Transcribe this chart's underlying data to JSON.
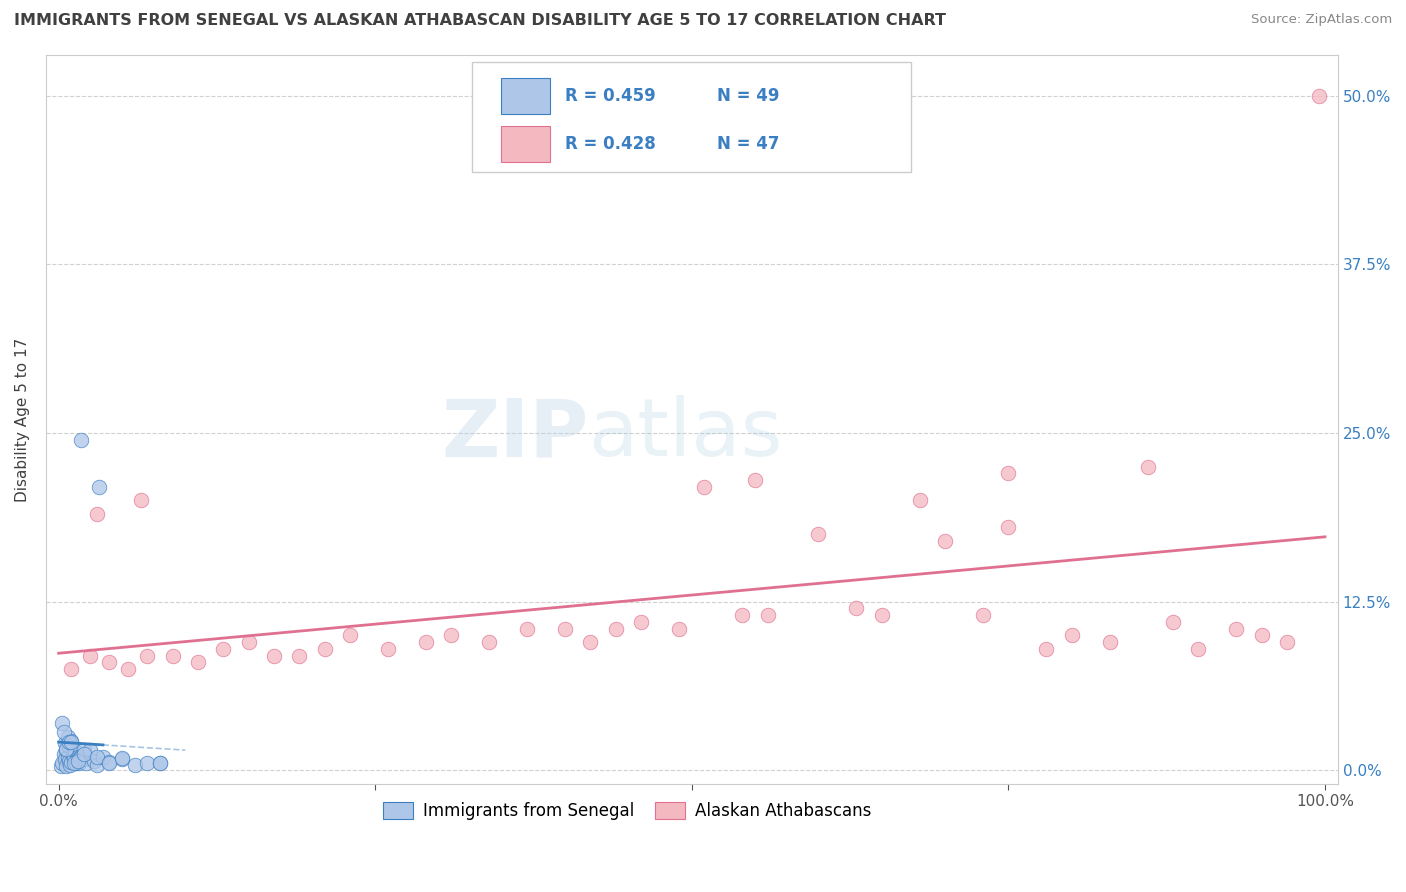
{
  "title": "IMMIGRANTS FROM SENEGAL VS ALASKAN ATHABASCAN DISABILITY AGE 5 TO 17 CORRELATION CHART",
  "source": "Source: ZipAtlas.com",
  "ylabel": "Disability Age 5 to 17",
  "xlabel_tick_vals": [
    0,
    25,
    50,
    75,
    100
  ],
  "ylabel_tick_vals": [
    0,
    12.5,
    25,
    37.5,
    50
  ],
  "xlim": [
    -1,
    101
  ],
  "ylim": [
    -1,
    53
  ],
  "legend_R_blue": "R = 0.459",
  "legend_N_blue": "N = 49",
  "legend_R_pink": "R = 0.428",
  "legend_N_pink": "N = 47",
  "watermark_zip": "ZIP",
  "watermark_atlas": "atlas",
  "blue_line_color": "#3a7fc1",
  "pink_line_color": "#e07090",
  "blue_scatter_color": "#aec6e8",
  "pink_scatter_color": "#f4b8c1",
  "background_color": "#ffffff",
  "grid_color": "#cccccc",
  "title_color": "#404040",
  "legend_text_color": "#3a7fc1",
  "bottom_legend_blue": "Immigrants from Senegal",
  "bottom_legend_pink": "Alaskan Athabascans",
  "blue_scatter_x": [
    0.2,
    0.3,
    0.4,
    0.5,
    0.5,
    0.6,
    0.7,
    0.8,
    0.9,
    1.0,
    1.0,
    1.1,
    1.2,
    1.3,
    1.4,
    1.5,
    1.5,
    1.6,
    1.7,
    1.8,
    2.0,
    2.0,
    2.2,
    2.5,
    2.5,
    2.8,
    3.0,
    3.5,
    4.0,
    5.0,
    6.0,
    7.0,
    8.0,
    0.3,
    0.4,
    0.5,
    0.6,
    0.7,
    0.8,
    1.0,
    1.2,
    1.5,
    2.0,
    3.0,
    4.0,
    5.0,
    8.0,
    3.5,
    2.0
  ],
  "blue_scatter_y": [
    0.3,
    0.5,
    1.2,
    2.0,
    0.8,
    1.5,
    0.3,
    2.5,
    1.0,
    0.7,
    1.8,
    0.4,
    2.2,
    0.6,
    1.1,
    0.9,
    1.4,
    0.5,
    1.0,
    0.8,
    0.5,
    1.0,
    1.0,
    0.8,
    1.5,
    0.5,
    1.5,
    0.7,
    0.4,
    1.0,
    0.6,
    0.8,
    0.4,
    3.5,
    2.8,
    1.6,
    0.9,
    1.3,
    2.1,
    2.1,
    0.5,
    0.7,
    1.2,
    1.0,
    0.5,
    0.9,
    0.5,
    21.5,
    25.0
  ],
  "pink_scatter_x": [
    1.0,
    2.0,
    3.0,
    4.0,
    5.0,
    7.0,
    8.0,
    10.0,
    12.0,
    14.0,
    16.0,
    18.0,
    20.0,
    22.0,
    24.0,
    26.0,
    28.0,
    30.0,
    32.0,
    34.0,
    36.0,
    38.0,
    40.0,
    42.0,
    44.0,
    46.0,
    48.0,
    50.0,
    52.0,
    55.0,
    58.0,
    60.0,
    62.0,
    65.0,
    67.0,
    70.0,
    73.0,
    75.0,
    78.0,
    80.0,
    83.0,
    85.0,
    87.0,
    89.0,
    91.0,
    93.0,
    99.5
  ],
  "pink_scatter_y": [
    7.5,
    9.0,
    8.5,
    8.0,
    7.5,
    8.5,
    8.0,
    9.0,
    8.5,
    9.5,
    9.0,
    9.5,
    8.5,
    9.5,
    10.0,
    9.0,
    9.5,
    10.5,
    9.5,
    10.0,
    9.5,
    10.5,
    10.0,
    9.5,
    11.0,
    10.5,
    11.0,
    21.0,
    12.0,
    11.5,
    22.0,
    17.5,
    12.0,
    11.0,
    11.5,
    17.5,
    10.5,
    17.5,
    9.5,
    10.0,
    9.5,
    10.5,
    22.5,
    10.5,
    10.0,
    9.5,
    50.0
  ]
}
